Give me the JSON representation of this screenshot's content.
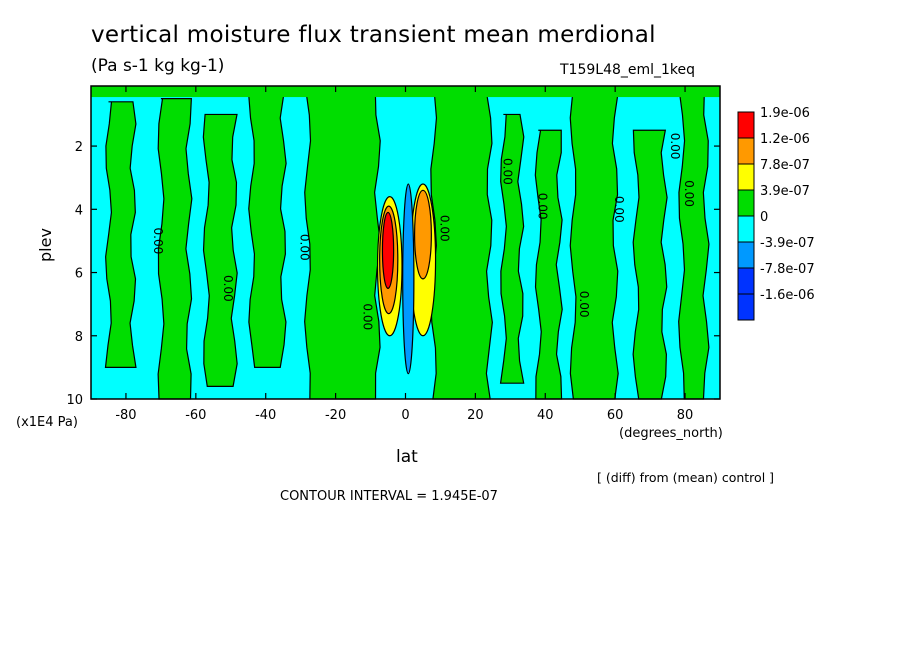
{
  "chart_data": {
    "type": "heatmap",
    "title": "vertical moisture flux transient mean merdional",
    "units": "(Pa s-1 kg kg-1)",
    "run_label": "T159L48_eml_1keq",
    "xlabel": "lat",
    "x_units": "(degrees_north)",
    "ylabel": "plev",
    "y_units": "(x1E4 Pa)",
    "xlim": [
      -90,
      90
    ],
    "ylim": [
      10,
      0.1
    ],
    "x_ticks": [
      "-80",
      "-60",
      "-40",
      "-20",
      "0",
      "20",
      "40",
      "60",
      "80"
    ],
    "y_ticks": [
      "2",
      "4",
      "6",
      "8",
      "10"
    ],
    "legend_levels": [
      "1.9e-06",
      "1.2e-06",
      "7.8e-07",
      "3.9e-07",
      "0",
      "-3.9e-07",
      "-7.8e-07",
      "-1.6e-06"
    ],
    "legend_colors": [
      "#ff0000",
      "#ff9900",
      "#ffff00",
      "#00dd00",
      "#00ffff",
      "#0099ff",
      "#0033ff",
      "#0033ff"
    ],
    "contour_labels": [
      "0.00"
    ],
    "footer_note": "[ (diff) from (mean) control ]",
    "contour_interval": "CONTOUR INTERVAL = 1.945E-07",
    "background_color": "#00ffff",
    "positive_color": "#00dd00",
    "strip_bands": [
      {
        "lat": [
          -85,
          -78
        ],
        "p": [
          0.6,
          9.0
        ]
      },
      {
        "lat": [
          -70,
          -62
        ],
        "p": [
          0.5,
          10
        ]
      },
      {
        "lat": [
          -57,
          -49
        ],
        "p": [
          1.0,
          9.6
        ]
      },
      {
        "lat": [
          -44,
          -35
        ],
        "p": [
          0.4,
          9.0
        ]
      },
      {
        "lat": [
          -28,
          -8
        ],
        "p": [
          0.2,
          10
        ]
      },
      {
        "lat": [
          8,
          24
        ],
        "p": [
          0.3,
          10
        ]
      },
      {
        "lat": [
          28,
          33
        ],
        "p": [
          1.0,
          9.5
        ]
      },
      {
        "lat": [
          38,
          44
        ],
        "p": [
          1.5,
          10
        ]
      },
      {
        "lat": [
          48,
          60
        ],
        "p": [
          0.3,
          10
        ]
      },
      {
        "lat": [
          66,
          74
        ],
        "p": [
          1.5,
          10
        ]
      },
      {
        "lat": [
          79,
          86
        ],
        "p": [
          0.2,
          10
        ]
      }
    ],
    "equatorial_features": [
      {
        "lat": -4.5,
        "p": 5.8,
        "dlat": 3.5,
        "dp": 2.2,
        "color": "#ffff00"
      },
      {
        "lat": -4.8,
        "p": 5.6,
        "dlat": 2.6,
        "dp": 1.7,
        "color": "#ff9900"
      },
      {
        "lat": -5.0,
        "p": 5.3,
        "dlat": 1.6,
        "dp": 1.2,
        "color": "#ff0000"
      },
      {
        "lat": 5.0,
        "p": 5.6,
        "dlat": 3.6,
        "dp": 2.4,
        "color": "#ffff00"
      },
      {
        "lat": 5.0,
        "p": 4.8,
        "dlat": 2.4,
        "dp": 1.4,
        "color": "#ff9900"
      },
      {
        "lat": 0.8,
        "p": 6.2,
        "dlat": 1.6,
        "dp": 3.0,
        "color": "#0099ff"
      }
    ]
  }
}
